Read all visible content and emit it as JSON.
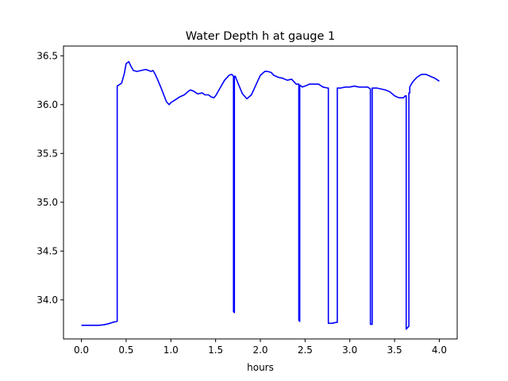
{
  "chart_data": {
    "type": "line",
    "title": "Water Depth h at gauge 1",
    "xlabel": "hours",
    "ylabel": "",
    "xlim": [
      -0.2,
      4.2
    ],
    "ylim": [
      33.6,
      36.6
    ],
    "x_ticks": [
      0.0,
      0.5,
      1.0,
      1.5,
      2.0,
      2.5,
      3.0,
      3.5,
      4.0
    ],
    "x_tick_labels": [
      "0.0",
      "0.5",
      "1.0",
      "1.5",
      "2.0",
      "2.5",
      "3.0",
      "3.5",
      "4.0"
    ],
    "y_ticks": [
      34.0,
      34.5,
      35.0,
      35.5,
      36.0,
      36.5
    ],
    "y_tick_labels": [
      "34.0",
      "34.5",
      "35.0",
      "35.5",
      "36.0",
      "36.5"
    ],
    "grid": false,
    "series": [
      {
        "color": "#0000ff",
        "x": [
          0.0,
          0.1,
          0.2,
          0.25,
          0.3,
          0.35,
          0.4,
          0.4,
          0.45,
          0.48,
          0.5,
          0.53,
          0.55,
          0.58,
          0.62,
          0.67,
          0.72,
          0.75,
          0.78,
          0.8,
          0.82,
          0.85,
          0.9,
          0.95,
          0.98,
          1.0,
          1.05,
          1.1,
          1.15,
          1.2,
          1.22,
          1.25,
          1.3,
          1.35,
          1.38,
          1.42,
          1.45,
          1.48,
          1.5,
          1.55,
          1.6,
          1.65,
          1.68,
          1.7,
          1.7,
          1.71,
          1.71,
          1.72,
          1.75,
          1.8,
          1.85,
          1.9,
          1.95,
          2.0,
          2.05,
          2.08,
          2.12,
          2.15,
          2.2,
          2.25,
          2.3,
          2.35,
          2.4,
          2.43,
          2.43,
          2.44,
          2.44,
          2.47,
          2.5,
          2.55,
          2.6,
          2.65,
          2.7,
          2.75,
          2.76,
          2.76,
          2.8,
          2.85,
          2.86,
          2.86,
          2.9,
          2.95,
          3.0,
          3.05,
          3.1,
          3.15,
          3.2,
          3.23,
          3.23,
          3.25,
          3.25,
          3.27,
          3.3,
          3.35,
          3.4,
          3.45,
          3.5,
          3.55,
          3.6,
          3.62,
          3.63,
          3.63,
          3.66,
          3.66,
          3.67,
          3.67,
          3.7,
          3.75,
          3.8,
          3.85,
          3.9,
          3.95,
          4.0
        ],
        "y": [
          33.74,
          33.74,
          33.74,
          33.745,
          33.755,
          33.77,
          33.78,
          36.19,
          36.22,
          36.32,
          36.42,
          36.44,
          36.4,
          36.35,
          36.34,
          36.35,
          36.36,
          36.35,
          36.34,
          36.35,
          36.32,
          36.26,
          36.15,
          36.03,
          36.0,
          36.02,
          36.05,
          36.08,
          36.1,
          36.14,
          36.15,
          36.14,
          36.11,
          36.12,
          36.1,
          36.1,
          36.08,
          36.07,
          36.09,
          36.17,
          36.25,
          36.3,
          36.31,
          36.29,
          33.88,
          33.87,
          36.29,
          36.29,
          36.22,
          36.11,
          36.06,
          36.1,
          36.2,
          36.3,
          36.34,
          36.34,
          36.33,
          36.3,
          36.28,
          36.27,
          36.25,
          36.26,
          36.21,
          36.21,
          33.79,
          33.78,
          36.2,
          36.18,
          36.19,
          36.21,
          36.21,
          36.21,
          36.18,
          36.17,
          36.17,
          33.76,
          33.76,
          33.77,
          33.77,
          36.17,
          36.17,
          36.18,
          36.18,
          36.19,
          36.18,
          36.18,
          36.18,
          36.16,
          33.75,
          33.75,
          36.17,
          36.17,
          36.17,
          36.16,
          36.15,
          36.13,
          36.09,
          36.07,
          36.07,
          36.09,
          36.09,
          33.7,
          33.73,
          36.12,
          36.12,
          36.18,
          36.23,
          36.28,
          36.31,
          36.31,
          36.29,
          36.27,
          36.24
        ]
      }
    ]
  }
}
